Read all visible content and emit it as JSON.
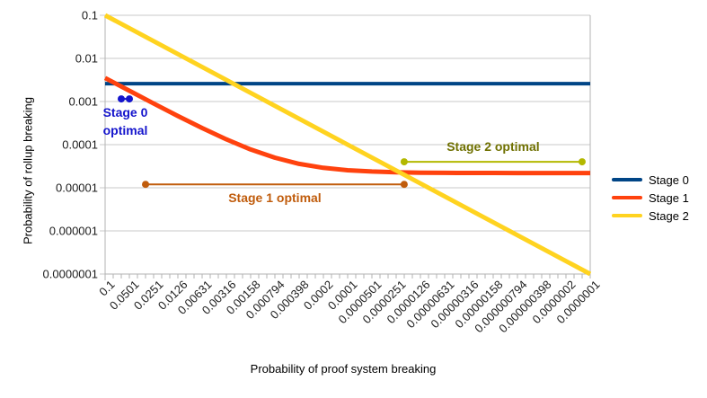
{
  "chart_data": {
    "type": "line",
    "title": "",
    "xlabel": "Probability of proof system breaking",
    "ylabel": "Probability of rollup breaking",
    "x_scale": "log",
    "y_scale": "log",
    "x_range": [
      0.1,
      1e-07
    ],
    "y_range": [
      0.1,
      1e-07
    ],
    "grid": "horizontal",
    "legend_position": "right",
    "colors": {
      "grid": "#c9c9c9",
      "axis": "#b3b3b3",
      "tick_text": "#1c1c1c"
    },
    "y_tick_labels": [
      "0.1",
      "0.01",
      "0.001",
      "0.0001",
      "0.00001",
      "0.000001",
      "0.0000001"
    ],
    "x_tick_labels": [
      "0.1",
      "0.0501",
      "0.0251",
      "0.0126",
      "0.00631",
      "0.00316",
      "0.00158",
      "0.000794",
      "0.000398",
      "0.0002",
      "0.0001",
      "0.0000501",
      "0.0000251",
      "0.0000126",
      "0.00000631",
      "0.00000316",
      "0.00000158",
      "0.000000794",
      "0.000000398",
      "0.0000002",
      "0.0000001"
    ],
    "series": [
      {
        "name": "Stage 0",
        "color": "#004586",
        "x": [
          0.1,
          1e-07
        ],
        "y": [
          0.0026,
          0.0026
        ]
      },
      {
        "name": "Stage 1",
        "color": "#ff420e",
        "x": [
          0.1,
          0.0501,
          0.0251,
          0.0126,
          0.00631,
          0.00316,
          0.00158,
          0.000794,
          0.000398,
          0.0002,
          0.0001,
          5.01e-05,
          2.51e-05,
          1.26e-05,
          6.31e-06,
          3.16e-06,
          1.58e-06,
          7.94e-07,
          3.98e-07,
          2e-07,
          1e-07
        ],
        "y": [
          0.00352,
          0.00178,
          0.0009,
          0.000463,
          0.000243,
          0.000133,
          7.73e-05,
          4.98e-05,
          3.59e-05,
          2.9e-05,
          2.55e-05,
          2.38e-05,
          2.29e-05,
          2.24e-05,
          2.22e-05,
          2.21e-05,
          2.21e-05,
          2.2e-05,
          2.2e-05,
          2.2e-05,
          2.2e-05
        ]
      },
      {
        "name": "Stage 2",
        "color": "#ffd320",
        "x": [
          0.1,
          1e-07
        ],
        "y": [
          0.1,
          1e-07
        ]
      }
    ],
    "annotations": [
      {
        "id": "stage-0-optimal",
        "text_lines": [
          "Stage 0",
          "optimal"
        ],
        "text_position": "below",
        "x1": 0.0631,
        "x2": 0.0501,
        "y": 0.00115,
        "line_color": "#1414cc",
        "text_color": "#1414cc"
      },
      {
        "id": "stage-1-optimal",
        "text_lines": [
          "Stage 1 optimal"
        ],
        "text_position": "below",
        "x1": 0.0316,
        "x2": 2e-05,
        "y": 1.2e-05,
        "line_color": "#c05c0c",
        "text_color": "#c05c0c"
      },
      {
        "id": "stage-2-optimal",
        "text_lines": [
          "Stage 2 optimal"
        ],
        "text_position": "above",
        "x1": 2e-05,
        "x2": 1.26e-07,
        "y": 4e-05,
        "line_color": "#b3b800",
        "text_color": "#6f7000"
      }
    ],
    "legend": [
      {
        "label": "Stage 0",
        "color": "#004586"
      },
      {
        "label": "Stage 1",
        "color": "#ff420e"
      },
      {
        "label": "Stage 2",
        "color": "#ffd320"
      }
    ]
  }
}
